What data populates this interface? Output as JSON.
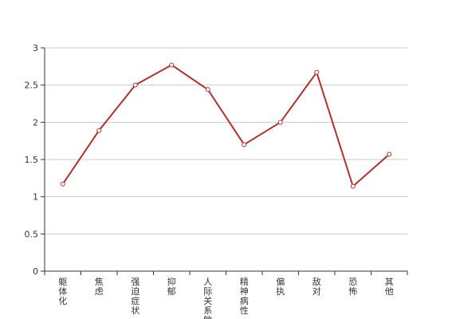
{
  "chart_data": {
    "type": "line",
    "categories": [
      "躯体化",
      "焦虑",
      "强迫症状",
      "抑郁",
      "人际关系敏感",
      "精神病性",
      "偏执",
      "敌对",
      "恐怖",
      "其他"
    ],
    "series": [
      {
        "values": [
          1.17,
          1.89,
          2.5,
          2.77,
          2.44,
          1.7,
          2.0,
          2.67,
          1.14,
          1.57
        ]
      }
    ],
    "ylim": [
      0,
      3
    ],
    "yticks": [
      0,
      0.5,
      1,
      1.5,
      2,
      2.5,
      3
    ],
    "grid": true,
    "colors": {
      "line": "#b03030",
      "marker_fill": "#ffffff"
    }
  }
}
